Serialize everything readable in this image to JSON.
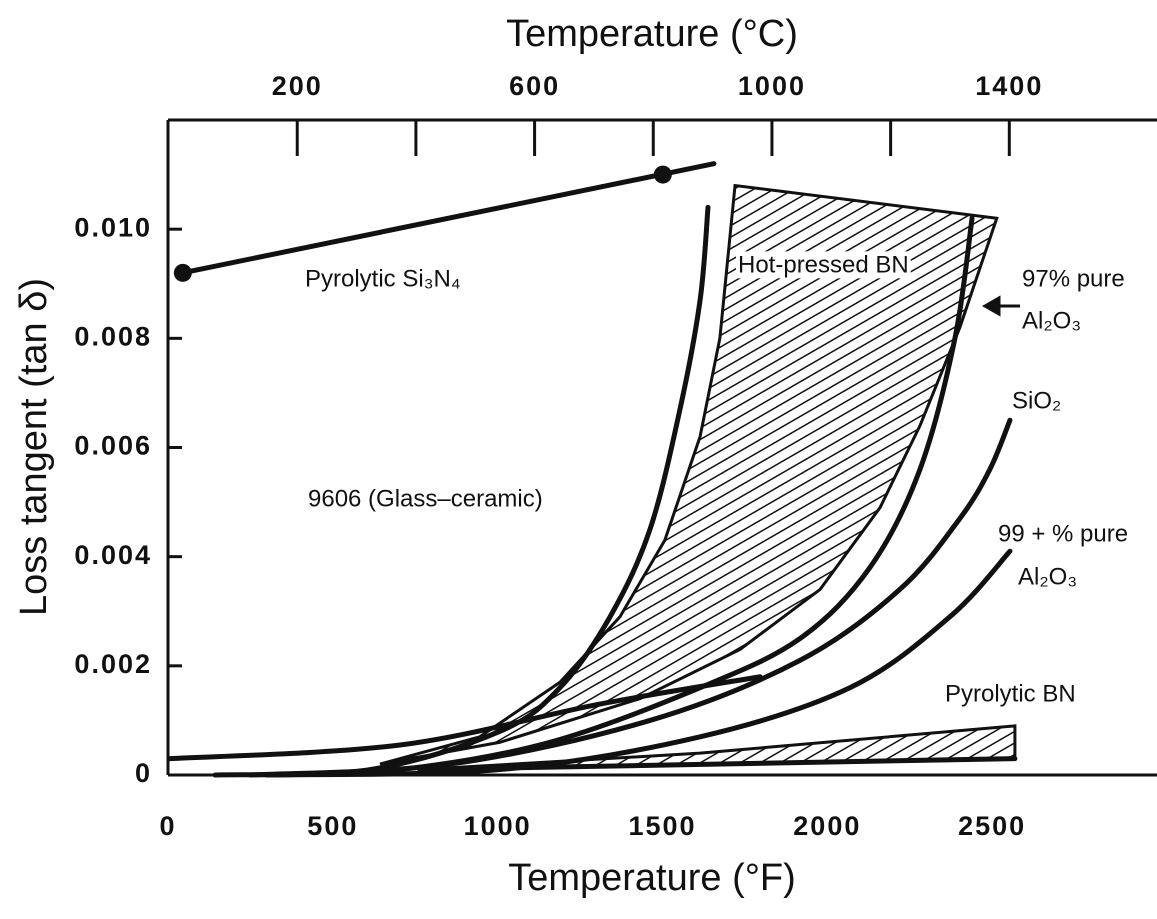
{
  "chart_data": {
    "type": "line",
    "x_label": "Temperature (°F)",
    "x2_label": "Temperature (°C)",
    "y_label": "Loss tangent (tan δ)",
    "xlim": [
      0,
      3000
    ],
    "xticks": [
      0,
      500,
      1000,
      1500,
      2000,
      2500
    ],
    "x2lim": [
      -17.8,
      1648.9
    ],
    "x2ticks": [
      200,
      600,
      1000,
      1400
    ],
    "x2minor_ticks": [
      400,
      800,
      1200
    ],
    "ylim": [
      0,
      0.012
    ],
    "yticks": [
      0,
      0.002,
      0.004,
      0.006,
      0.008,
      {
        "value": 0.01,
        "label": "0.010"
      }
    ],
    "series": [
      {
        "style": "line",
        "color": "#111",
        "x": [
          45,
          1656
        ],
        "values": [
          0.0092,
          0.0112
        ],
        "markers": {
          "x": [
            45,
            1501
          ],
          "values": [
            0.0092,
            0.011
          ]
        }
      },
      {
        "style": "line",
        "color": "#111",
        "x": [
          143,
          613,
          1007,
          1189,
          1341,
          1462,
          1553,
          1614,
          1638
        ],
        "values": [
          0,
          0.0001,
          0.0008,
          0.0016,
          0.0029,
          0.0045,
          0.0067,
          0.0087,
          0.0104
        ]
      },
      {
        "style": "hatched-area",
        "color": "#111",
        "x": [
          643,
          946,
          1189,
          1371,
          1507,
          1614,
          1674,
          1720,
          2514,
          2402,
          2281,
          2160,
          1978,
          1735,
          1432,
          1007
        ],
        "values": [
          0.0002,
          0.0007,
          0.0017,
          0.0029,
          0.0043,
          0.0062,
          0.008,
          0.0108,
          0.0102,
          0.0082,
          0.0064,
          0.0049,
          0.0034,
          0.0023,
          0.0014,
          0.0006
        ]
      },
      {
        "style": "line",
        "color": "#111",
        "x": [
          300,
          704,
          1159,
          1614,
          1917,
          2129,
          2281,
          2387,
          2439
        ],
        "values": [
          0,
          0.0001,
          0.0006,
          0.0016,
          0.0025,
          0.0038,
          0.0056,
          0.008,
          0.0102
        ]
      },
      {
        "style": "line",
        "color": "#111",
        "x": [
          6,
          704,
          1310,
          1796
        ],
        "values": [
          0.0003,
          0.00055,
          0.0013,
          0.0018
        ]
      },
      {
        "style": "line",
        "color": "#111",
        "x": [
          250,
          855,
          1462,
          1917,
          2220,
          2402,
          2493,
          2554
        ],
        "values": [
          0,
          0.0002,
          0.001,
          0.0021,
          0.0034,
          0.0047,
          0.0056,
          0.0065
        ]
      },
      {
        "style": "line",
        "color": "#111",
        "x": [
          300,
          1007,
          1614,
          2069,
          2372,
          2554
        ],
        "values": [
          0,
          0.0001,
          0.0007,
          0.0016,
          0.0029,
          0.0041
        ]
      },
      {
        "style": "hatched-area",
        "color": "#111",
        "x": [
          764,
          1614,
          2569,
          2569,
          1614
        ],
        "values": [
          0.0001,
          0.0004,
          0.0009,
          0.0003,
          0.0002
        ]
      },
      {
        "style": "line",
        "color": "#111",
        "x": [
          764,
          2569
        ],
        "values": [
          0.0001,
          0.0003
        ]
      }
    ],
    "annotations": [
      "Pyrolytic Si₃N₄",
      "Hot-pressed BN",
      "97% pure",
      "Al₂O₃",
      "SiO₂",
      "9606 (Glass–ceramic)",
      "99 + % pure",
      "Al₂O₃",
      "Pyrolytic BN"
    ]
  }
}
